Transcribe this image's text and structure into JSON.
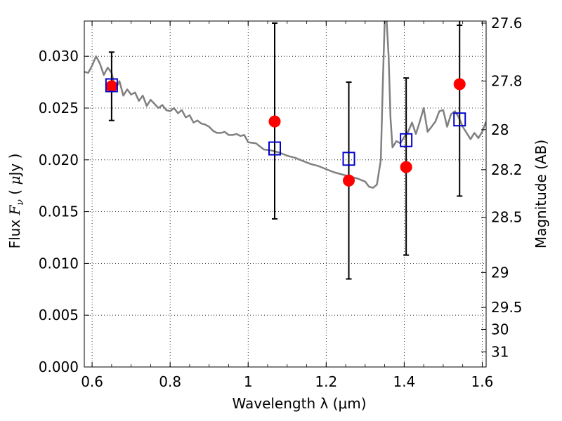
{
  "chart_data": {
    "type": "scatter",
    "xlabel": "Wavelength  λ (μm)",
    "ylabel": "Flux  F_ν  ( μJy )",
    "ylabel_right": "Magnitude (AB)",
    "xlim": [
      0.58,
      1.61
    ],
    "ylim": [
      0.0,
      0.0334
    ],
    "grid": true,
    "x_ticks": [
      0.6,
      0.8,
      1.0,
      1.2,
      1.4,
      1.6
    ],
    "x_tick_labels": [
      "0.6",
      "0.8",
      "1",
      "1.2",
      "1.4",
      "1.6"
    ],
    "y_ticks": [
      0.0,
      0.005,
      0.01,
      0.015,
      0.02,
      0.025,
      0.03
    ],
    "y_tick_labels": [
      "0.000",
      "0.005",
      "0.010",
      "0.015",
      "0.020",
      "0.025",
      "0.030"
    ],
    "right_ticks": [
      {
        "label": "27.6",
        "flux": 0.0332
      },
      {
        "label": "27.8",
        "flux": 0.02761
      },
      {
        "label": "28",
        "flux": 0.02291
      },
      {
        "label": "28.2",
        "flux": 0.01905
      },
      {
        "label": "28.5",
        "flux": 0.01445
      },
      {
        "label": "29",
        "flux": 0.00912
      },
      {
        "label": "29.5",
        "flux": 0.00575
      },
      {
        "label": "30",
        "flux": 0.00363
      },
      {
        "label": "31",
        "flux": 0.00145
      }
    ],
    "series": [
      {
        "kind": "line",
        "color": "#808080",
        "x": [
          0.58,
          0.59,
          0.6,
          0.61,
          0.62,
          0.63,
          0.64,
          0.65,
          0.66,
          0.67,
          0.68,
          0.69,
          0.7,
          0.71,
          0.72,
          0.73,
          0.74,
          0.75,
          0.76,
          0.77,
          0.78,
          0.79,
          0.8,
          0.81,
          0.82,
          0.83,
          0.84,
          0.85,
          0.86,
          0.87,
          0.88,
          0.89,
          0.9,
          0.91,
          0.92,
          0.93,
          0.94,
          0.95,
          0.96,
          0.97,
          0.98,
          0.99,
          1.0,
          1.02,
          1.04,
          1.06,
          1.08,
          1.1,
          1.12,
          1.14,
          1.16,
          1.18,
          1.2,
          1.22,
          1.24,
          1.26,
          1.28,
          1.3,
          1.31,
          1.32,
          1.33,
          1.34,
          1.345,
          1.35,
          1.355,
          1.36,
          1.365,
          1.37,
          1.38,
          1.39,
          1.4,
          1.41,
          1.42,
          1.43,
          1.44,
          1.45,
          1.46,
          1.47,
          1.48,
          1.49,
          1.5,
          1.51,
          1.52,
          1.53,
          1.54,
          1.55,
          1.56,
          1.57,
          1.58,
          1.59,
          1.6,
          1.61
        ],
        "y": [
          0.0285,
          0.0284,
          0.0291,
          0.03,
          0.0293,
          0.0282,
          0.0289,
          0.0284,
          0.0268,
          0.0276,
          0.0262,
          0.0268,
          0.0263,
          0.0265,
          0.0257,
          0.0262,
          0.0252,
          0.0258,
          0.0254,
          0.025,
          0.0253,
          0.0248,
          0.0247,
          0.025,
          0.0245,
          0.0248,
          0.0241,
          0.0243,
          0.0236,
          0.0238,
          0.0235,
          0.0234,
          0.0232,
          0.0228,
          0.0226,
          0.0226,
          0.0227,
          0.0224,
          0.0224,
          0.0225,
          0.0223,
          0.0224,
          0.0217,
          0.0216,
          0.021,
          0.0209,
          0.0207,
          0.0204,
          0.0202,
          0.0199,
          0.0196,
          0.0194,
          0.0191,
          0.0188,
          0.0186,
          0.0184,
          0.0182,
          0.0179,
          0.0174,
          0.0173,
          0.0176,
          0.02,
          0.027,
          0.0334,
          0.0334,
          0.03,
          0.024,
          0.0212,
          0.0218,
          0.0216,
          0.0222,
          0.0227,
          0.0236,
          0.0225,
          0.0237,
          0.025,
          0.0227,
          0.0232,
          0.0237,
          0.0247,
          0.0248,
          0.0232,
          0.0244,
          0.0247,
          0.0241,
          0.0232,
          0.0226,
          0.022,
          0.0226,
          0.0221,
          0.0227,
          0.0237
        ]
      },
      {
        "kind": "errorbar_points",
        "color": "#ff0000",
        "x": [
          0.65,
          1.068,
          1.258,
          1.405,
          1.542
        ],
        "y": [
          0.0271,
          0.0237,
          0.018,
          0.0193,
          0.0273
        ],
        "yerr_low": [
          0.0238,
          0.0143,
          0.0085,
          0.0108,
          0.0165
        ],
        "yerr_high": [
          0.0304,
          0.0332,
          0.0275,
          0.0279,
          0.0334
        ]
      },
      {
        "kind": "open_squares",
        "color": "#0000cc",
        "x": [
          0.65,
          1.068,
          1.258,
          1.405,
          1.542
        ],
        "y": [
          0.0272,
          0.0211,
          0.0201,
          0.0219,
          0.0239
        ]
      }
    ]
  }
}
